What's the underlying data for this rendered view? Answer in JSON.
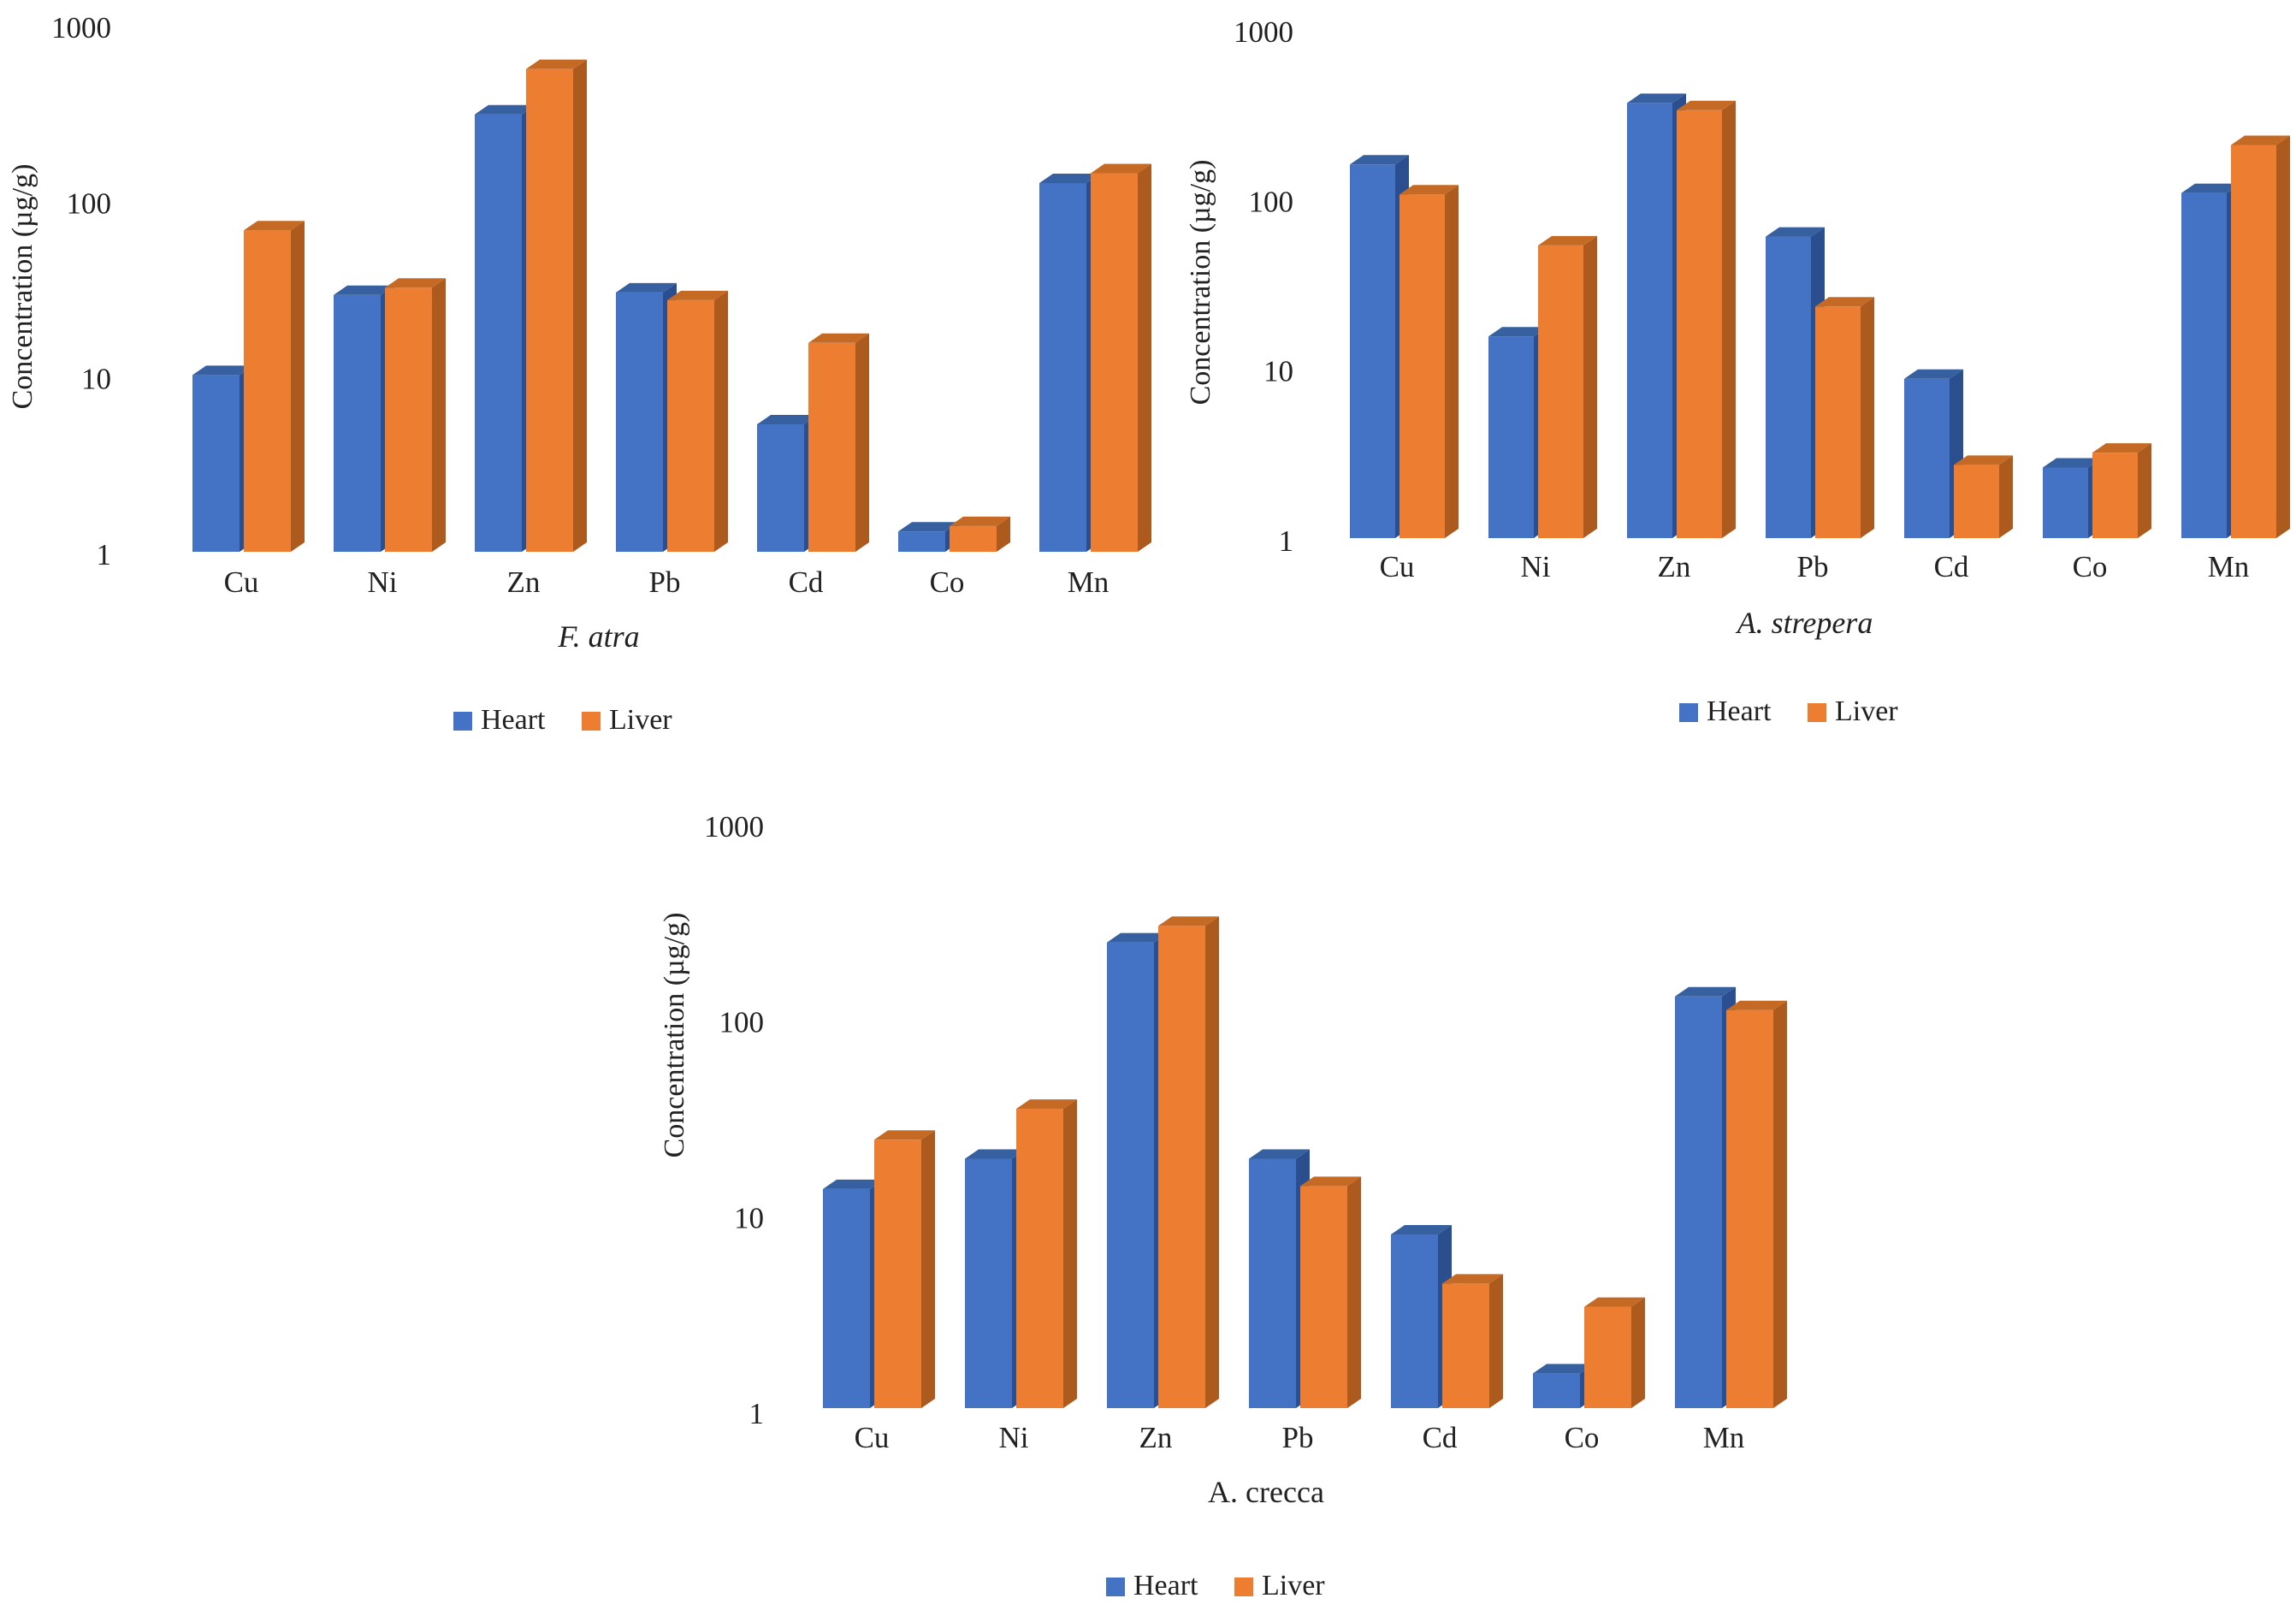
{
  "figure_background": "#ffffff",
  "colors": {
    "heart": {
      "front": "#4472C4",
      "side": "#2B4F8E",
      "top": "#36609F"
    },
    "liver": {
      "front": "#ED7D31",
      "side": "#AC5A1E",
      "top": "#C56A24"
    }
  },
  "legend": {
    "items": [
      {
        "label": "Heart",
        "color": "#4472C4"
      },
      {
        "label": "Liver",
        "color": "#ED7D31"
      }
    ]
  },
  "chart_data": [
    {
      "type": "bar",
      "title": "F. atra",
      "title_italic": true,
      "ylabel": "Concentration (µg/g)",
      "yscale": "log",
      "ylim": [
        1,
        1000
      ],
      "yticks": [
        1000,
        100,
        10,
        1
      ],
      "ytick_labels": [
        "1000",
        "100",
        "10",
        "1"
      ],
      "grid": false,
      "legend_position": "bottom",
      "categories": [
        "Cu",
        "Ni",
        "Zn",
        "Pb",
        "Cd",
        "Co",
        "Mn"
      ],
      "series": [
        {
          "name": "Heart",
          "values": [
            10.5,
            30,
            320,
            31,
            5.5,
            1.35,
            130
          ]
        },
        {
          "name": "Liver",
          "values": [
            70,
            33,
            580,
            28,
            16,
            1.45,
            148
          ]
        }
      ]
    },
    {
      "type": "bar",
      "title": "A. strepera",
      "title_italic": true,
      "ylabel": "Concentration (µg/g)",
      "yscale": "log",
      "ylim": [
        1,
        1000
      ],
      "yticks": [
        1000,
        100,
        10,
        1
      ],
      "ytick_labels": [
        "1000",
        "100",
        "10",
        "1"
      ],
      "grid": false,
      "legend_position": "bottom",
      "categories": [
        "Cu",
        "Ni",
        "Zn",
        "Pb",
        "Cd",
        "Co",
        "Mn"
      ],
      "series": [
        {
          "name": "Heart",
          "values": [
            165,
            16,
            380,
            62,
            9,
            2.7,
            112
          ]
        },
        {
          "name": "Liver",
          "values": [
            110,
            55,
            345,
            24,
            2.8,
            3.3,
            215
          ]
        }
      ]
    },
    {
      "type": "bar",
      "title": "A. crecca",
      "title_italic": false,
      "ylabel": "Concentration (µg/g)",
      "yscale": "log",
      "ylim": [
        1,
        1000
      ],
      "yticks": [
        1000,
        100,
        10,
        1
      ],
      "ytick_labels": [
        "1000",
        "100",
        "10",
        "1"
      ],
      "grid": false,
      "legend_position": "bottom",
      "categories": [
        "Cu",
        "Ni",
        "Zn",
        "Pb",
        "Cd",
        "Co",
        "Mn"
      ],
      "series": [
        {
          "name": "Heart",
          "values": [
            14,
            20,
            255,
            20,
            8.2,
            1.6,
            135
          ]
        },
        {
          "name": "Liver",
          "values": [
            25,
            36,
            310,
            14.5,
            4.6,
            3.5,
            115
          ]
        }
      ]
    }
  ]
}
